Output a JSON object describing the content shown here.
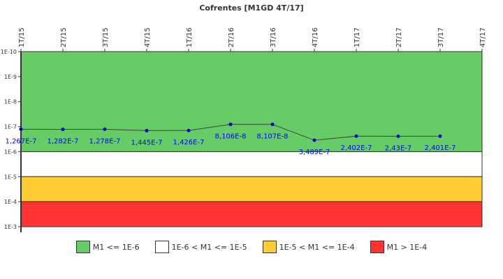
{
  "chart_data": {
    "type": "line",
    "title": "Cofrentes [M1GD 4T/17]",
    "y_scale": "log",
    "y_inverted": true,
    "ylim": [
      1e-10,
      0.001
    ],
    "y_ticks": [
      "1E-10",
      "1E-9",
      "1E-8",
      "1E-7",
      "1E-6",
      "1E-5",
      "1E-4",
      "1E-3"
    ],
    "x_ticks": [
      "1T/15",
      "2T/15",
      "3T/15",
      "4T/15",
      "1T/16",
      "2T/16",
      "3T/16",
      "4T/16",
      "1T/17",
      "2T/17",
      "3T/17",
      "4T/17"
    ],
    "series": [
      {
        "name": "M1",
        "color": "#0000cc",
        "values": [
          1.267e-07,
          1.282e-07,
          1.278e-07,
          1.445e-07,
          1.426e-07,
          8.106e-08,
          8.107e-08,
          3.489e-07,
          2.402e-07,
          2.43e-07,
          2.401e-07
        ],
        "labels": [
          "1,267E-7",
          "1,282E-7",
          "1,278E-7",
          "1,445E-7",
          "1,426E-7",
          "8,106E-8",
          "8,107E-8",
          "3,489E-7",
          "2,402E-7",
          "2,43E-7",
          "2,401E-7"
        ]
      }
    ],
    "bands": [
      {
        "from": 1e-10,
        "to": 1e-06,
        "color": "#66cc66",
        "label": "M1 <= 1E-6"
      },
      {
        "from": 1e-06,
        "to": 1e-05,
        "color": "#ffffff",
        "label": "1E-6 < M1 <= 1E-5"
      },
      {
        "from": 1e-05,
        "to": 0.0001,
        "color": "#ffcc33",
        "label": "1E-5 < M1 <= 1E-4"
      },
      {
        "from": 0.0001,
        "to": 0.001,
        "color": "#ff3333",
        "label": "M1 > 1E-4"
      }
    ],
    "legend_position": "bottom"
  }
}
